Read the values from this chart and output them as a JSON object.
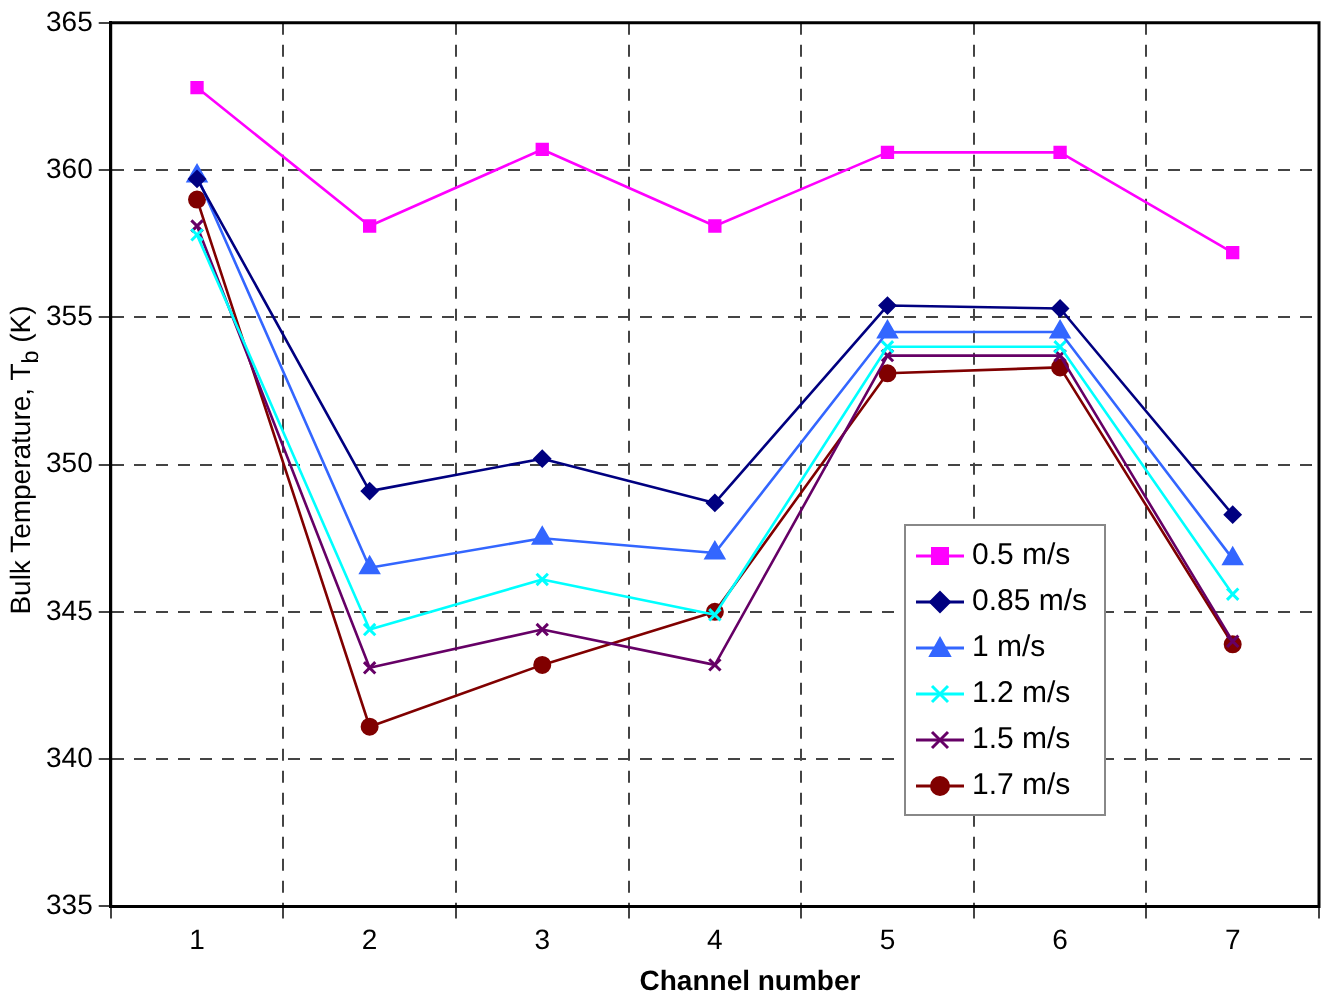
{
  "chart_data": {
    "type": "line",
    "xlabel": "Channel number",
    "ylabel": "Bulk Temperature, T$_{b}$ (K)",
    "categories": [
      "1",
      "2",
      "3",
      "4",
      "5",
      "6",
      "7"
    ],
    "ylim": [
      335,
      365
    ],
    "yticks": [
      335,
      340,
      345,
      350,
      355,
      360,
      365
    ],
    "grid": true,
    "legend": "bottom right",
    "series": [
      {
        "name": "0.5 m/s",
        "color": "#ff00ff",
        "marker": "square",
        "values": [
          362.8,
          358.1,
          360.7,
          358.1,
          360.6,
          360.6,
          357.2
        ]
      },
      {
        "name": "0.85 m/s",
        "color": "#000080",
        "marker": "diamond",
        "values": [
          359.7,
          349.1,
          350.2,
          348.7,
          355.4,
          355.3,
          348.3
        ]
      },
      {
        "name": "1 m/s",
        "color": "#3366ff",
        "marker": "triangle",
        "values": [
          359.8,
          346.5,
          347.5,
          347.0,
          354.5,
          354.5,
          346.8
        ]
      },
      {
        "name": "1.2 m/s",
        "color": "#00ffff",
        "marker": "cross",
        "values": [
          357.8,
          344.4,
          346.1,
          344.9,
          354.0,
          354.0,
          345.6
        ]
      },
      {
        "name": "1.5 m/s",
        "color": "#660066",
        "marker": "cross",
        "values": [
          358.1,
          343.1,
          344.4,
          343.2,
          353.7,
          353.7,
          344.0
        ]
      },
      {
        "name": "1.7 m/s",
        "color": "#800000",
        "marker": "circle",
        "values": [
          359.0,
          341.1,
          343.2,
          345.0,
          353.1,
          353.3,
          343.9
        ]
      }
    ]
  }
}
